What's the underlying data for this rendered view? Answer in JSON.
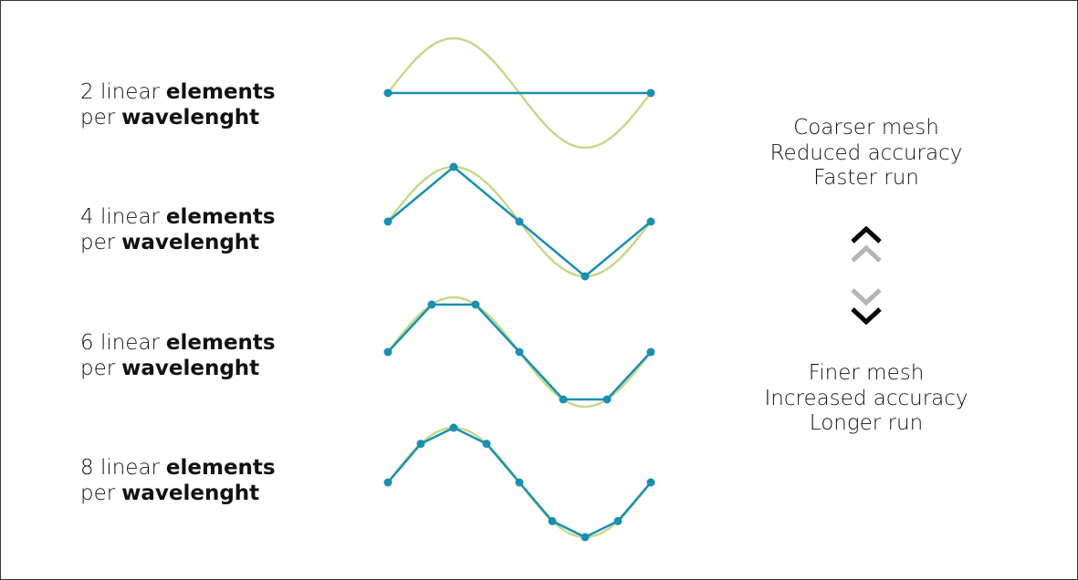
{
  "rows": [
    {
      "line1": "2 linear",
      "line1_bold": "elements",
      "line2": "per",
      "line2_bold": "wavelenght"
    },
    {
      "line1": "4 linear",
      "line1_bold": "elements",
      "line2": "per",
      "line2_bold": "wavelenght"
    },
    {
      "line1": "6 linear",
      "line1_bold": "elements",
      "line2": "per",
      "line2_bold": "wavelenght"
    },
    {
      "line1": "8 linear",
      "line1_bold": "elements",
      "line2": "per",
      "line2_bold": "wavelenght"
    }
  ],
  "coarse": [
    "Coarser mesh",
    "Reduced accuracy",
    "Faster run"
  ],
  "fine": [
    "Finer mesh",
    "Increased accuracy",
    "Longer run"
  ]
}
